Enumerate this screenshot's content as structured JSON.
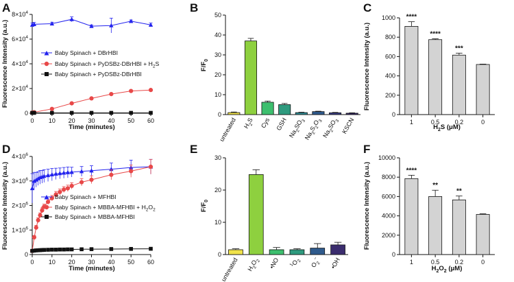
{
  "chart_data": [
    {
      "panel": "A",
      "type": "line",
      "xlabel": "Time (minutes)",
      "ylabel": "Fluorescence Intensity (a.u.)",
      "xlim": [
        0,
        60
      ],
      "xticks": [
        0,
        10,
        20,
        30,
        40,
        50,
        60
      ],
      "ylim": [
        0,
        80000
      ],
      "yticks": [
        0,
        20000,
        40000,
        60000,
        80000
      ],
      "ytick_labels": [
        {
          "base": "0",
          "exp": ""
        },
        {
          "base": "2×10",
          "exp": "4"
        },
        {
          "base": "4×10",
          "exp": "4"
        },
        {
          "base": "6×10",
          "exp": "4"
        },
        {
          "base": "8×10",
          "exp": "4"
        }
      ],
      "series": [
        {
          "name": "Baby Spinach + DBrHBI",
          "legend_sub": "",
          "legend_tail": "",
          "color": "#2222ee",
          "marker": "triangle",
          "x": [
            0,
            1,
            10,
            20,
            30,
            40,
            50,
            60
          ],
          "y": [
            71500,
            72000,
            72500,
            76000,
            70500,
            71000,
            74500,
            71500
          ],
          "err": [
            1500,
            1500,
            1200,
            2000,
            1000,
            6000,
            1000,
            1500
          ]
        },
        {
          "name": "Baby Spinach + PyDSBz-DBrHBI + H",
          "legend_sub": "2",
          "legend_tail": "S",
          "color": "#e84848",
          "marker": "circle",
          "x": [
            0,
            1,
            10,
            20,
            30,
            40,
            50,
            60
          ],
          "y": [
            500,
            800,
            3500,
            8000,
            12000,
            15500,
            18000,
            18800
          ],
          "err": [
            200,
            200,
            300,
            400,
            400,
            500,
            500,
            600
          ]
        },
        {
          "name": "Baby Spinach + PyDSBz-DBrHBI",
          "legend_sub": "",
          "legend_tail": "",
          "color": "#111111",
          "marker": "square",
          "x": [
            0,
            1,
            10,
            20,
            30,
            40,
            50,
            60
          ],
          "y": [
            300,
            300,
            300,
            300,
            300,
            300,
            300,
            300
          ],
          "err": [
            100,
            100,
            100,
            100,
            100,
            100,
            100,
            100
          ]
        }
      ]
    },
    {
      "panel": "B",
      "type": "bar",
      "ylabel": "F/F",
      "ylabel_sub": "0",
      "ylim": [
        0,
        50
      ],
      "yticks": [
        0,
        10,
        20,
        30,
        40,
        50
      ],
      "categories": [
        {
          "base": "untreated",
          "sub": "",
          "tail": ""
        },
        {
          "base": "H",
          "sub": "2",
          "tail": "S"
        },
        {
          "base": "Cys",
          "sub": "",
          "tail": ""
        },
        {
          "base": "GSH",
          "sub": "",
          "tail": ""
        },
        {
          "base": "Na",
          "sub": "2",
          "tail": "SO",
          "sub2": "3"
        },
        {
          "base": "Na",
          "sub": "2",
          "tail": "S",
          "sub2": "2",
          "tail2": "O",
          "sub3": "3"
        },
        {
          "base": "Na",
          "sub": "2",
          "tail": "SO",
          "sub2": "3"
        },
        {
          "base": "KSCN",
          "sub": "",
          "tail": ""
        }
      ],
      "values": [
        1.0,
        37.0,
        6.2,
        5.0,
        1.0,
        1.5,
        0.9,
        0.7
      ],
      "errors": [
        0.3,
        1.3,
        0.6,
        0.6,
        0.2,
        0.2,
        0.2,
        0.2
      ],
      "colors": [
        "#f0e24a",
        "#8ed03f",
        "#3dbf6e",
        "#2e9a7e",
        "#2e8a93",
        "#2f5a8c",
        "#3a3f86",
        "#3b2d6e"
      ]
    },
    {
      "panel": "C",
      "type": "bar",
      "xlabel": "H",
      "xlabel_sub": "2",
      "xlabel_tail": "S (μM)",
      "ylabel": "Fluorescence Intensity (a.u.)",
      "ylim": [
        0,
        1000
      ],
      "yticks": [
        0,
        200,
        400,
        600,
        800,
        1000
      ],
      "categories": [
        "1",
        "0.5",
        "0.2",
        "0"
      ],
      "values": [
        912,
        775,
        615,
        518
      ],
      "errors": [
        48,
        8,
        20,
        4
      ],
      "significance": [
        "****",
        "****",
        "***",
        ""
      ],
      "color": "#d3d3d3"
    },
    {
      "panel": "D",
      "type": "line",
      "xlabel": "Time (minutes)",
      "ylabel": "Fluorescence Intensity (a.u.)",
      "xlim": [
        0,
        60
      ],
      "xticks": [
        0,
        10,
        20,
        30,
        40,
        50,
        60
      ],
      "ylim": [
        0,
        4000000
      ],
      "yticks": [
        0,
        1000000,
        2000000,
        3000000,
        4000000
      ],
      "ytick_labels": [
        {
          "base": "0",
          "exp": ""
        },
        {
          "base": "1×10",
          "exp": "6"
        },
        {
          "base": "2×10",
          "exp": "6"
        },
        {
          "base": "3×10",
          "exp": "6"
        },
        {
          "base": "4×10",
          "exp": "6"
        }
      ],
      "series": [
        {
          "name": "Baby Spinach + MFHBI",
          "legend_sub": "",
          "legend_tail": "",
          "color": "#2222ee",
          "marker": "triangle",
          "x": [
            0,
            1,
            2,
            3,
            4,
            5,
            6,
            8,
            10,
            12,
            14,
            16,
            18,
            20,
            25,
            30,
            40,
            50,
            60
          ],
          "y": [
            2700000,
            3000000,
            3050000,
            3100000,
            3150000,
            3170000,
            3200000,
            3230000,
            3260000,
            3290000,
            3310000,
            3330000,
            3350000,
            3360000,
            3390000,
            3420000,
            3480000,
            3550000,
            3580000
          ],
          "err": [
            600000,
            350000,
            300000,
            280000,
            280000,
            260000,
            260000,
            250000,
            250000,
            230000,
            220000,
            220000,
            220000,
            200000,
            200000,
            200000,
            250000,
            300000,
            300000
          ]
        },
        {
          "name": "Baby Spinach + MBBA-MFHBI + H",
          "legend_sub": "2",
          "legend_tail": "O",
          "legend_sub2": "2",
          "color": "#e84848",
          "marker": "circle",
          "x": [
            0,
            1,
            2,
            3,
            4,
            5,
            6,
            8,
            10,
            12,
            14,
            16,
            18,
            20,
            25,
            30,
            40,
            50,
            60
          ],
          "y": [
            150000,
            700000,
            1100000,
            1400000,
            1600000,
            1800000,
            1950000,
            2150000,
            2300000,
            2450000,
            2550000,
            2650000,
            2700000,
            2800000,
            2950000,
            3050000,
            3250000,
            3400000,
            3580000
          ],
          "err": [
            50000,
            80000,
            90000,
            100000,
            100000,
            100000,
            110000,
            110000,
            110000,
            120000,
            120000,
            120000,
            130000,
            130000,
            150000,
            160000,
            200000,
            250000,
            300000
          ]
        },
        {
          "name": "Baby Spinach + MBBA-MFHBI",
          "legend_sub": "",
          "legend_tail": "",
          "color": "#111111",
          "marker": "square",
          "x": [
            0,
            1,
            2,
            3,
            4,
            5,
            6,
            8,
            10,
            12,
            14,
            16,
            18,
            20,
            25,
            30,
            40,
            50,
            60
          ],
          "y": [
            150000,
            160000,
            170000,
            175000,
            180000,
            185000,
            190000,
            195000,
            200000,
            200000,
            205000,
            205000,
            210000,
            210000,
            215000,
            220000,
            225000,
            230000,
            235000
          ],
          "err": [
            20000,
            20000,
            20000,
            20000,
            20000,
            20000,
            20000,
            20000,
            20000,
            20000,
            20000,
            20000,
            20000,
            20000,
            20000,
            20000,
            30000,
            30000,
            30000
          ]
        }
      ]
    },
    {
      "panel": "E",
      "type": "bar",
      "ylabel": "F/F",
      "ylabel_sub": "0",
      "ylim": [
        0,
        30
      ],
      "yticks": [
        0,
        10,
        20,
        30
      ],
      "categories": [
        {
          "base": "untreated",
          "sup": "",
          "sub": "",
          "tail": ""
        },
        {
          "base": "H",
          "sup": "",
          "sub": "2",
          "tail": "O",
          "sub2": "2"
        },
        {
          "base": "•NO",
          "sup": "",
          "sub": "",
          "tail": ""
        },
        {
          "base": "",
          "sup": "1",
          "sub": "",
          "tail": "O",
          "sub2": "2"
        },
        {
          "base": "O",
          "sup": "",
          "sub": "2",
          "tail": "",
          "sup2": "−"
        },
        {
          "base": "•OH",
          "sup": "",
          "sub": "",
          "tail": ""
        }
      ],
      "values": [
        1.5,
        24.8,
        1.5,
        1.5,
        2.0,
        3.0
      ],
      "errors": [
        0.3,
        1.5,
        0.7,
        0.3,
        1.4,
        0.8
      ],
      "colors": [
        "#f0e24a",
        "#8ed03f",
        "#3dbf6e",
        "#2e9a7e",
        "#2f5a8c",
        "#3b2d6e"
      ]
    },
    {
      "panel": "F",
      "type": "bar",
      "xlabel": "H",
      "xlabel_sub": "2",
      "xlabel_tail": "O",
      "xlabel_sub2": "2",
      "xlabel_tail2": " (μM)",
      "ylabel": "Fluorescence Intensity (a.u.)",
      "ylim": [
        0,
        10000
      ],
      "yticks": [
        0,
        2000,
        4000,
        6000,
        8000,
        10000
      ],
      "categories": [
        "1",
        "0.5",
        "0.2",
        "0"
      ],
      "values": [
        7850,
        6000,
        5650,
        4150
      ],
      "errors": [
        350,
        650,
        400,
        60
      ],
      "significance": [
        "****",
        "**",
        "**",
        ""
      ],
      "color": "#d3d3d3"
    }
  ]
}
